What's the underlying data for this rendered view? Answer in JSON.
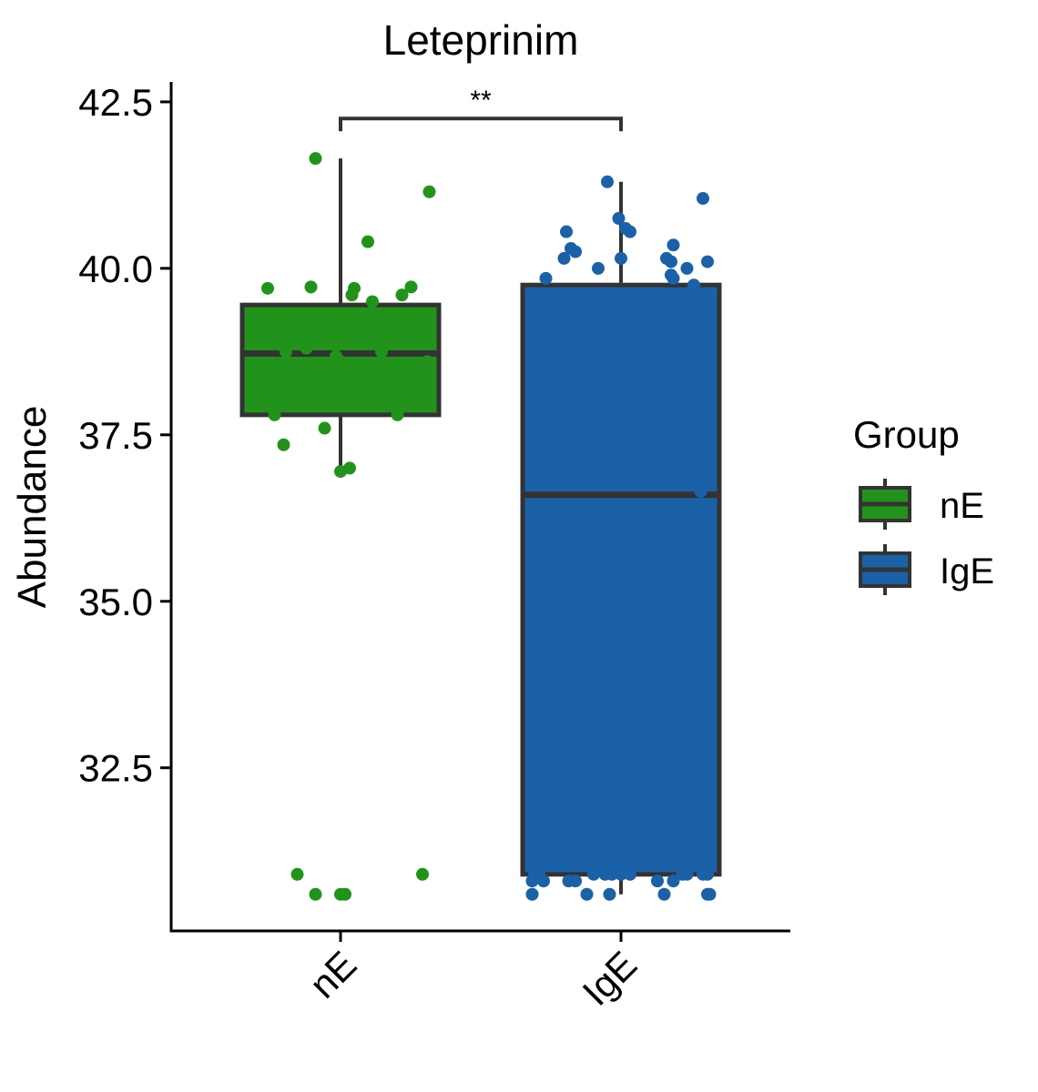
{
  "chart_data": {
    "type": "box",
    "title": "Leteprinim",
    "xlabel": "",
    "ylabel": "Abundance",
    "categories": [
      "nE",
      "IgE"
    ],
    "ylim": [
      30.05,
      42.8
    ],
    "yticks": [
      32.5,
      35.0,
      37.5,
      40.0,
      42.5
    ],
    "ytick_labels": [
      "32.5",
      "35.0",
      "37.5",
      "40.0",
      "42.5"
    ],
    "legend": {
      "title": "Group",
      "position": "right",
      "entries": [
        "nE",
        "IgE"
      ]
    },
    "colors": {
      "nE": "#22931a",
      "IgE": "#1a61a8",
      "outline": "#333333"
    },
    "significance": {
      "label": "**",
      "between": [
        "nE",
        "IgE"
      ],
      "y": 42.25
    },
    "series": [
      {
        "name": "nE",
        "box": {
          "lower_whisker": 37.0,
          "q1": 37.8,
          "median": 38.72,
          "q3": 39.45,
          "upper_whisker": 41.65
        },
        "points": [
          [
            -0.37,
            39.1
          ],
          [
            -0.32,
            39.7
          ],
          [
            -0.29,
            37.8
          ],
          [
            -0.25,
            37.35
          ],
          [
            -0.24,
            38.75
          ],
          [
            -0.19,
            30.9
          ],
          [
            -0.15,
            38.8
          ],
          [
            -0.13,
            39.72
          ],
          [
            -0.11,
            30.6
          ],
          [
            -0.11,
            41.65
          ],
          [
            -0.07,
            37.6
          ],
          [
            -0.02,
            38.68
          ],
          [
            0.0,
            30.6
          ],
          [
            0.0,
            36.95
          ],
          [
            0.0,
            38.6
          ],
          [
            0.02,
            30.6
          ],
          [
            0.04,
            37.0
          ],
          [
            0.05,
            39.6
          ],
          [
            0.06,
            39.7
          ],
          [
            0.12,
            40.4
          ],
          [
            0.14,
            39.5
          ],
          [
            0.18,
            38.75
          ],
          [
            0.25,
            37.8
          ],
          [
            0.27,
            39.6
          ],
          [
            0.31,
            39.72
          ],
          [
            0.36,
            30.9
          ],
          [
            0.38,
            39.3
          ],
          [
            0.38,
            38.6
          ],
          [
            0.39,
            41.15
          ]
        ]
      },
      {
        "name": "IgE",
        "box": {
          "lower_whisker": 30.6,
          "q1": 30.9,
          "median": 36.6,
          "q3": 39.75,
          "upper_whisker": 41.3
        },
        "points": [
          [
            -0.39,
            30.8
          ],
          [
            -0.39,
            30.6
          ],
          [
            -0.38,
            30.9
          ],
          [
            -0.38,
            38.3
          ],
          [
            -0.37,
            37.8
          ],
          [
            -0.36,
            30.9
          ],
          [
            -0.34,
            37.5
          ],
          [
            -0.34,
            30.8
          ],
          [
            -0.33,
            39.85
          ],
          [
            -0.25,
            40.15
          ],
          [
            -0.24,
            40.55
          ],
          [
            -0.23,
            30.8
          ],
          [
            -0.22,
            40.3
          ],
          [
            -0.2,
            40.25
          ],
          [
            -0.2,
            30.8
          ],
          [
            -0.15,
            30.6
          ],
          [
            -0.12,
            30.9
          ],
          [
            -0.1,
            40.0
          ],
          [
            -0.07,
            30.9
          ],
          [
            -0.06,
            41.3
          ],
          [
            -0.05,
            30.6
          ],
          [
            -0.04,
            30.9
          ],
          [
            -0.01,
            40.75
          ],
          [
            0.0,
            40.15
          ],
          [
            0.0,
            30.9
          ],
          [
            0.02,
            40.6
          ],
          [
            0.04,
            40.55
          ],
          [
            0.04,
            30.9
          ],
          [
            0.16,
            30.8
          ],
          [
            0.19,
            30.6
          ],
          [
            0.2,
            40.15
          ],
          [
            0.22,
            40.1
          ],
          [
            0.22,
            39.9
          ],
          [
            0.23,
            40.35
          ],
          [
            0.23,
            30.8
          ],
          [
            0.23,
            39.85
          ],
          [
            0.27,
            30.9
          ],
          [
            0.29,
            40.0
          ],
          [
            0.29,
            30.9
          ],
          [
            0.32,
            39.75
          ],
          [
            0.35,
            36.65
          ],
          [
            0.36,
            30.9
          ],
          [
            0.36,
            37.1
          ],
          [
            0.36,
            36.8
          ],
          [
            0.36,
            41.05
          ],
          [
            0.38,
            30.6
          ],
          [
            0.38,
            30.9
          ],
          [
            0.38,
            40.1
          ],
          [
            0.39,
            30.6
          ]
        ]
      }
    ]
  }
}
